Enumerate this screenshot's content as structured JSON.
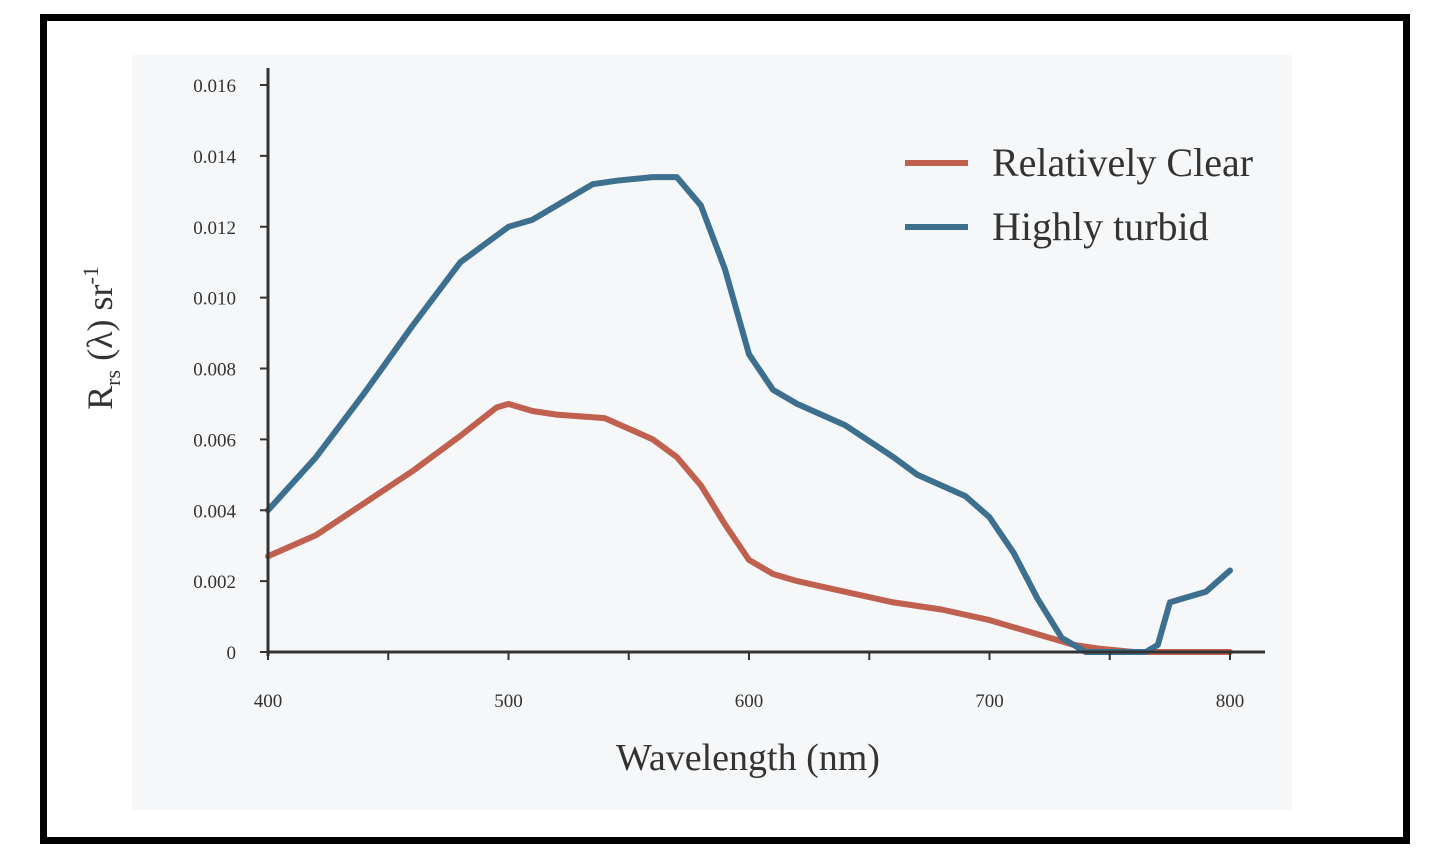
{
  "chart_data": {
    "type": "line",
    "title": "",
    "xlabel": "Wavelength (nm)",
    "ylabel_main": "R",
    "ylabel_sub": "rs",
    "ylabel_rest": " (λ) sr",
    "ylabel_sup": "-1",
    "xlim": [
      400,
      800
    ],
    "ylim": [
      0,
      0.016
    ],
    "x_ticks": [
      400,
      500,
      600,
      700,
      800
    ],
    "x_tick_labels": [
      "400",
      "500",
      "600",
      "700",
      "800"
    ],
    "y_ticks": [
      0,
      0.002,
      0.004,
      0.006,
      0.008,
      0.01,
      0.012,
      0.014,
      0.016
    ],
    "y_tick_labels": [
      "0",
      "0.002",
      "0.004",
      "0.006",
      "0.008",
      "0.010",
      "0.012",
      "0.014",
      "0.016"
    ],
    "legend_position": "top-right",
    "grid": false,
    "series": [
      {
        "name": "Relatively Clear",
        "color": "#c0604e",
        "points": [
          [
            400,
            0.0027
          ],
          [
            420,
            0.0033
          ],
          [
            440,
            0.0042
          ],
          [
            460,
            0.0051
          ],
          [
            480,
            0.0061
          ],
          [
            495,
            0.0069
          ],
          [
            500,
            0.007
          ],
          [
            505,
            0.0069
          ],
          [
            510,
            0.0068
          ],
          [
            520,
            0.0067
          ],
          [
            540,
            0.0066
          ],
          [
            550,
            0.0063
          ],
          [
            560,
            0.006
          ],
          [
            570,
            0.0055
          ],
          [
            580,
            0.0047
          ],
          [
            590,
            0.0036
          ],
          [
            600,
            0.0026
          ],
          [
            610,
            0.0022
          ],
          [
            620,
            0.002
          ],
          [
            640,
            0.0017
          ],
          [
            660,
            0.0014
          ],
          [
            680,
            0.0012
          ],
          [
            700,
            0.0009
          ],
          [
            720,
            0.0005
          ],
          [
            735,
            0.0002
          ],
          [
            745,
            0.0001
          ],
          [
            760,
            0.0
          ],
          [
            780,
            0.0
          ],
          [
            800,
            0.0
          ]
        ]
      },
      {
        "name": "Highly turbid",
        "color": "#3d6f8e",
        "points": [
          [
            400,
            0.004
          ],
          [
            420,
            0.0055
          ],
          [
            440,
            0.0073
          ],
          [
            460,
            0.0092
          ],
          [
            480,
            0.011
          ],
          [
            500,
            0.012
          ],
          [
            510,
            0.0122
          ],
          [
            520,
            0.0126
          ],
          [
            535,
            0.0132
          ],
          [
            545,
            0.0133
          ],
          [
            560,
            0.0134
          ],
          [
            570,
            0.0134
          ],
          [
            580,
            0.0126
          ],
          [
            590,
            0.0108
          ],
          [
            600,
            0.0084
          ],
          [
            610,
            0.0074
          ],
          [
            620,
            0.007
          ],
          [
            640,
            0.0064
          ],
          [
            660,
            0.0055
          ],
          [
            670,
            0.005
          ],
          [
            690,
            0.0044
          ],
          [
            700,
            0.0038
          ],
          [
            710,
            0.0028
          ],
          [
            720,
            0.0015
          ],
          [
            730,
            0.0004
          ],
          [
            740,
            0.0
          ],
          [
            750,
            0.0
          ],
          [
            765,
            0.0
          ],
          [
            770,
            0.0002
          ],
          [
            775,
            0.0014
          ],
          [
            780,
            0.0015
          ],
          [
            790,
            0.0017
          ],
          [
            800,
            0.0023
          ]
        ]
      }
    ]
  }
}
